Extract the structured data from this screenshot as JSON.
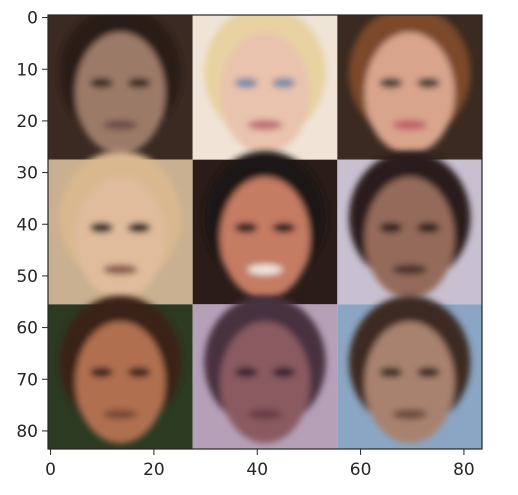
{
  "chart_data": {
    "type": "image",
    "grid_rows": 3,
    "grid_cols": 3,
    "xlim": [
      -0.5,
      83.5
    ],
    "ylim": [
      83.5,
      -0.5
    ],
    "xticks": [
      0,
      20,
      40,
      60,
      80
    ],
    "yticks": [
      0,
      10,
      20,
      30,
      40,
      50,
      60,
      70,
      80
    ],
    "title": "",
    "xlabel": "",
    "ylabel": "",
    "grid": false,
    "tiles": [
      {
        "name": "face-1",
        "bg": "#3a2a22",
        "hair": "#2c1d16",
        "skin": "#9c7a68",
        "eyes": "#3a2a26",
        "mouth": "#6e4e48"
      },
      {
        "name": "face-2",
        "bg": "#efe4d6",
        "hair": "#e8d2a2",
        "skin": "#e9c3ad",
        "eyes": "#7a8aa8",
        "mouth": "#c06a72"
      },
      {
        "name": "face-3",
        "bg": "#3b2a20",
        "hair": "#7b4a2c",
        "skin": "#d8a48c",
        "eyes": "#4a3a34",
        "mouth": "#c0606a"
      },
      {
        "name": "face-4",
        "bg": "#c9b090",
        "hair": "#d9b890",
        "skin": "#e0bc9c",
        "eyes": "#1a1416",
        "mouth": "#8a5a48"
      },
      {
        "name": "face-5",
        "bg": "#2a1c18",
        "hair": "#1e1412",
        "skin": "#c47c64",
        "eyes": "#2a1a18",
        "mouth": "#f2e6e0"
      },
      {
        "name": "face-6",
        "bg": "#c8c0d0",
        "hair": "#2a1e1c",
        "skin": "#946a5a",
        "eyes": "#2c1e1c",
        "mouth": "#4a302a"
      },
      {
        "name": "face-7",
        "bg": "#2c3a22",
        "hair": "#3a2214",
        "skin": "#b07050",
        "eyes": "#3a221a",
        "mouth": "#7a4a36"
      },
      {
        "name": "face-8",
        "bg": "#b6a0b8",
        "hair": "#4a3040",
        "skin": "#8a5a60",
        "eyes": "#3a2430",
        "mouth": "#6a3a44"
      },
      {
        "name": "face-9",
        "bg": "#8aa6c4",
        "hair": "#3e2a22",
        "skin": "#a8826e",
        "eyes": "#3a2a24",
        "mouth": "#6e4a40"
      }
    ]
  }
}
